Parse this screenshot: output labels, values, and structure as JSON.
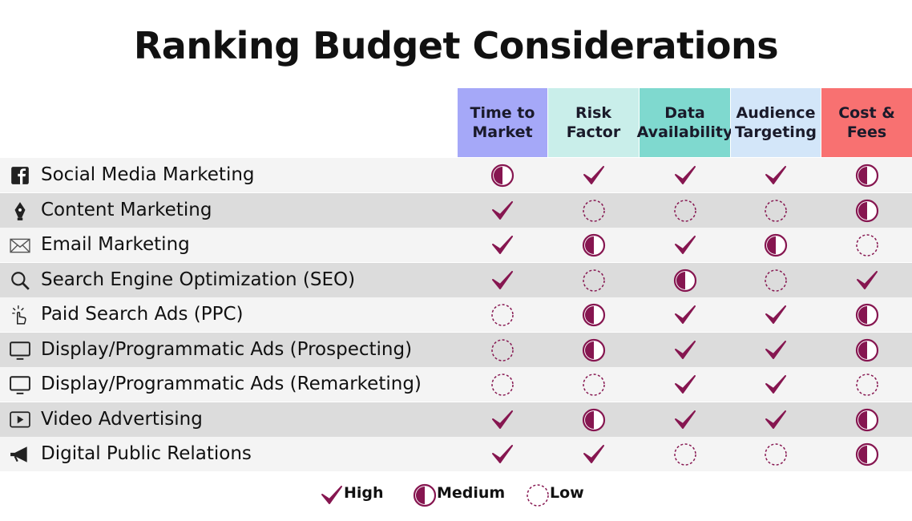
{
  "header": {
    "title": "Ranking Budget Considerations"
  },
  "table": {
    "columns": [
      {
        "lines": [
          "Time to",
          "Market"
        ],
        "color": "#a5a8f8"
      },
      {
        "lines": [
          "Risk",
          "Factor"
        ],
        "color": "#c9eeea"
      },
      {
        "lines": [
          "Data",
          "Availability"
        ],
        "color": "#7fd9cf"
      },
      {
        "lines": [
          "Audience",
          "Targeting"
        ],
        "color": "#d3e6f9"
      },
      {
        "lines": [
          "Cost &",
          "Fees"
        ],
        "color": "#f87171"
      }
    ],
    "rows": [
      {
        "label": "Social Media Marketing",
        "ratings": [
          "Medium",
          "High",
          "High",
          "High",
          "Medium"
        ]
      },
      {
        "label": "Content Marketing",
        "ratings": [
          "High",
          "Low",
          "Low",
          "Low",
          "Medium"
        ]
      },
      {
        "label": "Email Marketing",
        "ratings": [
          "High",
          "Medium",
          "High",
          "Medium",
          "Low"
        ]
      },
      {
        "label": "Search Engine Optimization (SEO)",
        "ratings": [
          "High",
          "Low",
          "Medium",
          "Low",
          "High"
        ]
      },
      {
        "label": "Paid Search Ads (PPC)",
        "ratings": [
          "Low",
          "Medium",
          "High",
          "High",
          "Medium"
        ]
      },
      {
        "label": "Display/Programmatic Ads (Prospecting)",
        "ratings": [
          "Low",
          "Medium",
          "High",
          "High",
          "Medium"
        ]
      },
      {
        "label": "Display/Programmatic Ads (Remarketing)",
        "ratings": [
          "Low",
          "Low",
          "High",
          "High",
          "Low"
        ]
      },
      {
        "label": "Video Advertising",
        "ratings": [
          "High",
          "Medium",
          "High",
          "High",
          "Medium"
        ]
      },
      {
        "label": "Digital Public Relations",
        "ratings": [
          "High",
          "High",
          "Low",
          "Low",
          "Medium"
        ]
      }
    ]
  },
  "legend": [
    "High",
    "Medium",
    "Low"
  ]
}
